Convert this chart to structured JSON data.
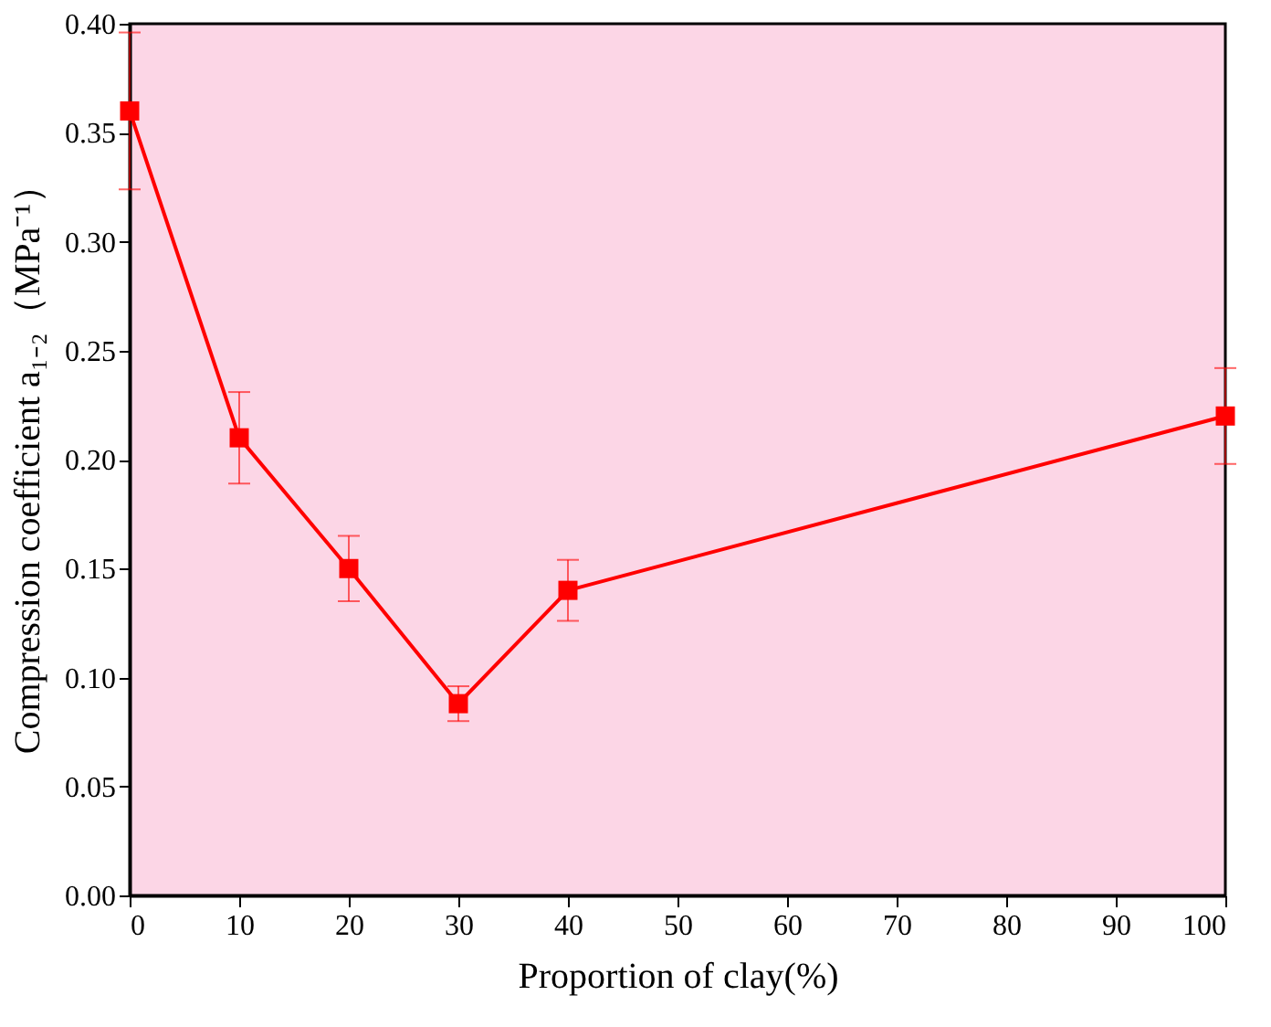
{
  "chart_data": {
    "type": "line",
    "xlabel": "Proportion of clay(%)",
    "ylabel": "Compression coefficient a₁₋₂（MPa⁻¹）",
    "x": [
      0,
      10,
      20,
      30,
      40,
      100
    ],
    "series": [
      {
        "color": "#ff0000",
        "values": [
          0.36,
          0.21,
          0.15,
          0.088,
          0.14,
          0.22
        ],
        "errors": [
          0.036,
          0.021,
          0.015,
          0.008,
          0.014,
          0.022
        ]
      }
    ],
    "xlim": [
      0,
      100
    ],
    "xticks": [
      0,
      10,
      20,
      30,
      40,
      50,
      60,
      70,
      80,
      90,
      100
    ],
    "ylim": [
      0,
      0.4
    ],
    "yticks": [
      {
        "value": 0,
        "label": "0.00"
      },
      {
        "value": 0.05,
        "label": "0.05"
      },
      {
        "value": 0.1,
        "label": "0.10"
      },
      {
        "value": 0.15,
        "label": "0.15"
      },
      {
        "value": 0.2,
        "label": "0.20"
      },
      {
        "value": 0.25,
        "label": "0.25"
      },
      {
        "value": 0.3,
        "label": "0.30"
      },
      {
        "value": 0.35,
        "label": "0.35"
      },
      {
        "value": 0.4,
        "label": "0.40"
      }
    ],
    "marker": "square",
    "line_style": "solid",
    "grid": false
  }
}
